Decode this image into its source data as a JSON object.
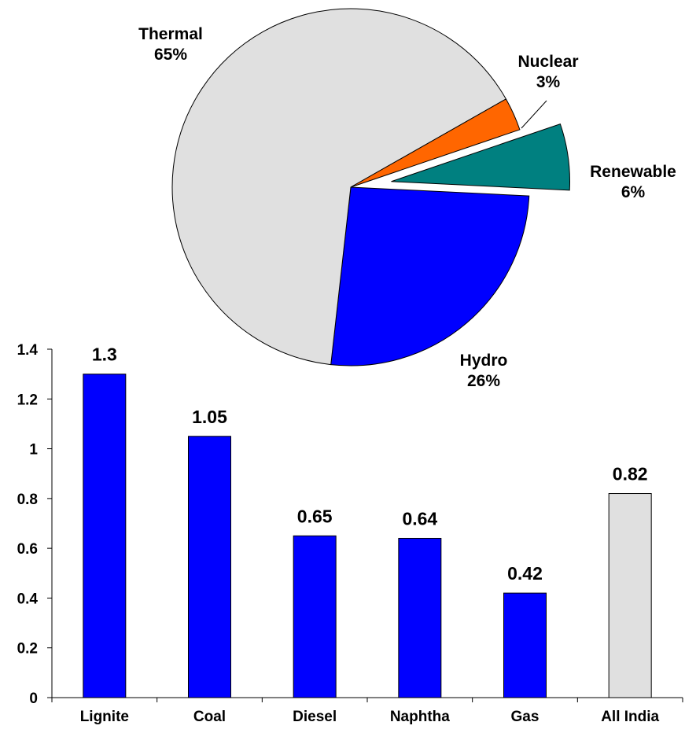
{
  "chart_data": [
    {
      "type": "pie",
      "title": "",
      "slices": [
        {
          "label": "Thermal",
          "percent_label": "65%",
          "value": 65,
          "color": "#E0E0E0"
        },
        {
          "label": "Nuclear",
          "percent_label": "3%",
          "value": 3,
          "color": "#FF6600"
        },
        {
          "label": "Renewable",
          "percent_label": "6%",
          "value": 6,
          "color": "#008080",
          "exploded": true
        },
        {
          "label": "Hydro",
          "percent_label": "26%",
          "value": 26,
          "color": "#0000FF"
        }
      ]
    },
    {
      "type": "bar",
      "title": "",
      "xlabel": "",
      "ylabel": "",
      "categories": [
        "Lignite",
        "Coal",
        "Diesel",
        "Naphtha",
        "Gas",
        "All India"
      ],
      "values": [
        1.3,
        1.05,
        0.65,
        0.64,
        0.42,
        0.82
      ],
      "value_labels": [
        "1.3",
        "1.05",
        "0.65",
        "0.64",
        "0.42",
        "0.82"
      ],
      "bar_colors": [
        "#0000FF",
        "#0000FF",
        "#0000FF",
        "#0000FF",
        "#0000FF",
        "#E0E0E0"
      ],
      "ylim": [
        0,
        1.4
      ],
      "yticks": [
        0,
        0.2,
        0.4,
        0.6,
        0.8,
        1,
        1.2,
        1.4
      ],
      "ytick_labels": [
        "0",
        "0.2",
        "0.4",
        "0.6",
        "0.8",
        "1",
        "1.2",
        "1.4"
      ],
      "grid": false,
      "legend": "none"
    }
  ]
}
